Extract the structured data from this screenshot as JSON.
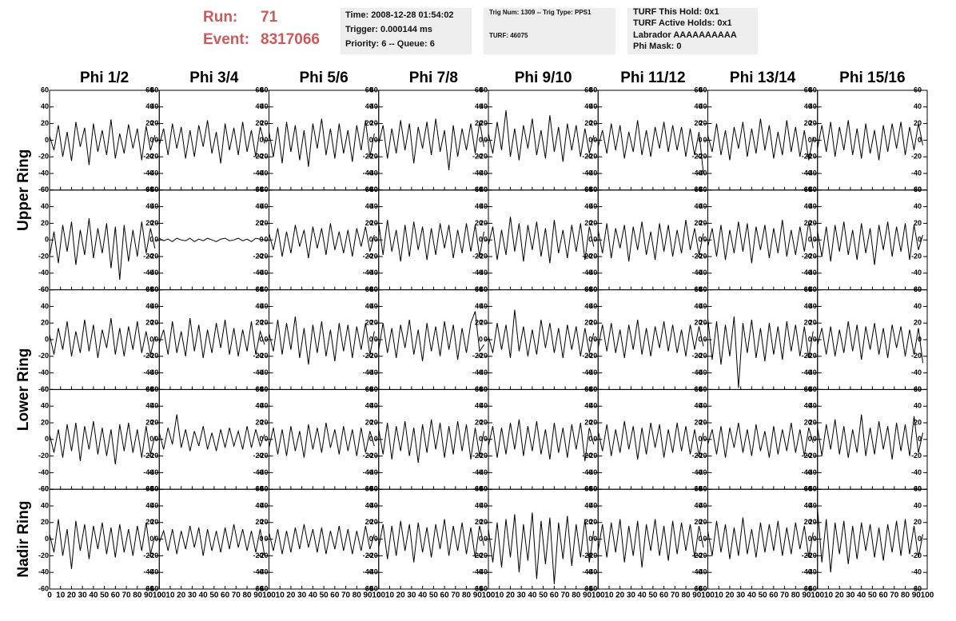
{
  "header": {
    "run_label": "Run:",
    "run": "71",
    "event_label": "Event:",
    "event": "8317066",
    "time_box": [
      "Time: 2008-12-28 01:54:02",
      "Trigger: 0.000144 ms",
      "Priority: 6 -- Queue: 6"
    ],
    "trig_box": [
      "Trig Num: 1309 -- Trig Type: PPS1",
      "TURF: 46075"
    ],
    "turf_box": [
      "TURF This Hold: 0x1",
      "TURF Active Holds: 0x1",
      "Labrador AAAAAAAAAA",
      "Phi Mask: 0"
    ]
  },
  "chart_data": {
    "type": "line",
    "column_titles": [
      "Phi 1/2",
      "Phi 3/4",
      "Phi 5/6",
      "Phi 7/8",
      "Phi 9/10",
      "Phi 11/12",
      "Phi 13/14",
      "Phi 15/16"
    ],
    "row_titles": [
      "Upper Ring",
      "Lower Ring",
      "Nadir Ring"
    ],
    "color": "#000000",
    "xlim": [
      0,
      100
    ],
    "xticks": [
      0,
      10,
      20,
      30,
      40,
      50,
      60,
      70,
      80,
      90,
      100
    ],
    "ylim": [
      -60,
      60
    ],
    "yticks": [
      -60,
      -40,
      -20,
      0,
      20,
      40,
      60
    ],
    "x": [
      0,
      4,
      8,
      12,
      16,
      20,
      24,
      28,
      32,
      36,
      40,
      44,
      48,
      52,
      56,
      60,
      64,
      68,
      72,
      76,
      80,
      84,
      88,
      92,
      96
    ],
    "series": [
      {
        "values": [
          5,
          -12,
          18,
          -20,
          10,
          -25,
          22,
          -8,
          15,
          -30,
          20,
          -14,
          12,
          -18,
          25,
          -22,
          8,
          -16,
          19,
          -10,
          14,
          -24,
          17,
          -12,
          6
        ]
      },
      {
        "values": [
          -6,
          14,
          -18,
          20,
          -10,
          16,
          -22,
          12,
          -20,
          18,
          -8,
          24,
          -16,
          10,
          -28,
          20,
          -12,
          15,
          -18,
          22,
          -14,
          12,
          -20,
          16,
          -4
        ]
      },
      {
        "values": [
          10,
          -20,
          16,
          -28,
          22,
          -14,
          18,
          -24,
          12,
          -32,
          20,
          -10,
          26,
          -18,
          14,
          -22,
          20,
          -16,
          12,
          -26,
          18,
          -12,
          24,
          -20,
          8
        ]
      },
      {
        "values": [
          -4,
          18,
          -22,
          14,
          -16,
          24,
          -12,
          20,
          -28,
          16,
          -10,
          22,
          -18,
          26,
          -14,
          12,
          -36,
          18,
          -20,
          14,
          -12,
          20,
          -16,
          22,
          -8
        ]
      },
      {
        "values": [
          8,
          -16,
          22,
          -12,
          36,
          -20,
          14,
          -24,
          18,
          -10,
          26,
          -18,
          12,
          -22,
          30,
          -14,
          16,
          -26,
          20,
          -12,
          18,
          -20,
          14,
          -16,
          6
        ]
      },
      {
        "values": [
          -8,
          12,
          -16,
          20,
          -12,
          18,
          -22,
          10,
          -14,
          24,
          -18,
          12,
          -20,
          16,
          -10,
          22,
          -14,
          18,
          -12,
          16,
          -20,
          14,
          -18,
          10,
          -40
        ]
      },
      {
        "values": [
          6,
          -14,
          20,
          -18,
          12,
          -24,
          16,
          -10,
          22,
          -20,
          14,
          -16,
          26,
          -12,
          18,
          -22,
          10,
          -18,
          24,
          -14,
          16,
          -20,
          12,
          -24,
          4
        ]
      },
      {
        "values": [
          -10,
          18,
          -14,
          22,
          -20,
          16,
          -12,
          24,
          -18,
          14,
          -22,
          20,
          -16,
          12,
          -24,
          18,
          -14,
          20,
          -10,
          22,
          -18,
          16,
          -12,
          20,
          -6
        ]
      },
      {
        "values": [
          -20,
          10,
          -28,
          18,
          -14,
          22,
          -30,
          12,
          -18,
          26,
          -22,
          14,
          -16,
          20,
          -34,
          16,
          -48,
          18,
          -26,
          12,
          -20,
          22,
          -16,
          14,
          -10
        ]
      },
      {
        "values": [
          2,
          -1,
          1,
          -2,
          2,
          0,
          -1,
          2,
          -2,
          1,
          -1,
          2,
          0,
          -2,
          1,
          2,
          -1,
          0,
          2,
          -1,
          1,
          -2,
          2,
          1,
          0
        ]
      },
      {
        "values": [
          8,
          -12,
          14,
          -20,
          10,
          -16,
          18,
          -8,
          12,
          -22,
          16,
          -10,
          14,
          -18,
          20,
          -12,
          10,
          -16,
          12,
          -20,
          14,
          -8,
          16,
          -14,
          6
        ]
      },
      {
        "values": [
          20,
          -18,
          24,
          -14,
          12,
          -26,
          18,
          -20,
          22,
          -12,
          16,
          -24,
          14,
          -18,
          20,
          -10,
          18,
          -22,
          12,
          -16,
          20,
          -14,
          18,
          -20,
          10
        ]
      },
      {
        "values": [
          -6,
          16,
          -24,
          12,
          -18,
          28,
          -14,
          20,
          -26,
          18,
          -12,
          22,
          -20,
          14,
          -28,
          24,
          -16,
          12,
          -22,
          18,
          -14,
          20,
          -24,
          16,
          -8
        ]
      },
      {
        "values": [
          12,
          -16,
          20,
          -22,
          14,
          -10,
          18,
          -26,
          16,
          -12,
          22,
          -18,
          10,
          -24,
          20,
          -14,
          18,
          -20,
          12,
          -16,
          24,
          -12,
          14,
          -18,
          8
        ]
      },
      {
        "values": [
          -8,
          14,
          -20,
          18,
          -24,
          12,
          -16,
          22,
          -14,
          20,
          -28,
          16,
          -12,
          18,
          -22,
          14,
          -16,
          24,
          -20,
          12,
          -18,
          16,
          -14,
          22,
          -10
        ]
      },
      {
        "values": [
          10,
          -20,
          16,
          -26,
          18,
          -14,
          22,
          -18,
          12,
          -24,
          20,
          -16,
          14,
          -30,
          18,
          -12,
          22,
          -20,
          16,
          -14,
          20,
          -24,
          18,
          -12,
          6
        ]
      },
      {
        "values": [
          6,
          -18,
          14,
          -12,
          22,
          -20,
          10,
          -16,
          24,
          -14,
          18,
          -22,
          12,
          -10,
          26,
          -18,
          14,
          -20,
          16,
          -12,
          22,
          -16,
          10,
          -18,
          4
        ]
      },
      {
        "values": [
          -4,
          12,
          -18,
          22,
          -16,
          10,
          -20,
          26,
          -14,
          18,
          -22,
          12,
          -16,
          20,
          -10,
          24,
          -18,
          14,
          -20,
          12,
          -14,
          22,
          -18,
          10,
          -6
        ]
      },
      {
        "values": [
          8,
          -14,
          24,
          -18,
          20,
          -12,
          28,
          -22,
          14,
          -30,
          18,
          -16,
          22,
          -20,
          12,
          -26,
          20,
          -14,
          18,
          -22,
          16,
          -12,
          20,
          -18,
          10
        ]
      },
      {
        "values": [
          -12,
          20,
          -16,
          14,
          -22,
          18,
          -10,
          24,
          -18,
          12,
          -26,
          20,
          -14,
          16,
          -20,
          22,
          -12,
          18,
          -24,
          14,
          -16,
          20,
          34,
          -14,
          -6
        ]
      },
      {
        "values": [
          4,
          -16,
          20,
          -12,
          18,
          -22,
          36,
          -14,
          16,
          -20,
          12,
          -18,
          24,
          -10,
          20,
          -16,
          14,
          -22,
          18,
          -12,
          16,
          -20,
          14,
          -16,
          8
        ]
      },
      {
        "values": [
          -10,
          18,
          -14,
          20,
          -16,
          12,
          -22,
          18,
          -12,
          24,
          -18,
          14,
          -20,
          16,
          -10,
          22,
          -14,
          18,
          -16,
          12,
          -20,
          18,
          -12,
          16,
          -8
        ]
      },
      {
        "values": [
          26,
          -24,
          22,
          -30,
          18,
          -20,
          28,
          -58,
          20,
          -16,
          24,
          -22,
          14,
          -26,
          20,
          -18,
          16,
          -24,
          22,
          -14,
          18,
          -20,
          16,
          -22,
          10
        ]
      },
      {
        "values": [
          -6,
          14,
          -18,
          16,
          -20,
          12,
          -16,
          22,
          -14,
          18,
          -24,
          16,
          -12,
          20,
          -18,
          14,
          -22,
          18,
          -10,
          16,
          -20,
          12,
          -18,
          14,
          -28
        ]
      },
      {
        "values": [
          6,
          -16,
          12,
          -22,
          18,
          -14,
          20,
          -26,
          16,
          -12,
          22,
          -18,
          14,
          -20,
          12,
          -30,
          18,
          -14,
          20,
          -16,
          12,
          -22,
          16,
          -18,
          4
        ]
      },
      {
        "values": [
          8,
          -12,
          14,
          -6,
          30,
          -10,
          12,
          -14,
          10,
          -8,
          16,
          -12,
          8,
          -14,
          12,
          -10,
          14,
          -8,
          10,
          -12,
          16,
          -10,
          12,
          -8,
          6
        ]
      },
      {
        "values": [
          -10,
          14,
          -18,
          12,
          -20,
          16,
          -14,
          10,
          -22,
          18,
          -12,
          14,
          -16,
          20,
          -10,
          12,
          -18,
          16,
          -14,
          12,
          -20,
          14,
          -16,
          10,
          -8
        ]
      },
      {
        "values": [
          12,
          -18,
          20,
          -24,
          16,
          -14,
          22,
          -20,
          14,
          -28,
          18,
          -16,
          24,
          -12,
          20,
          -22,
          16,
          -18,
          22,
          -14,
          18,
          -24,
          14,
          -20,
          10
        ]
      },
      {
        "values": [
          -8,
          16,
          -22,
          14,
          -18,
          20,
          -12,
          24,
          -20,
          16,
          -14,
          22,
          -18,
          12,
          -24,
          20,
          -16,
          14,
          -22,
          18,
          -12,
          20,
          -26,
          14,
          -6
        ]
      },
      {
        "values": [
          10,
          -14,
          18,
          -20,
          12,
          -16,
          22,
          -12,
          16,
          -24,
          14,
          -18,
          20,
          -10,
          18,
          -22,
          12,
          -16,
          20,
          -14,
          16,
          -18,
          12,
          -20,
          8
        ]
      },
      {
        "values": [
          -6,
          12,
          -18,
          16,
          -22,
          14,
          -10,
          20,
          -16,
          12,
          -20,
          18,
          -14,
          10,
          -22,
          16,
          -18,
          12,
          -14,
          20,
          -16,
          12,
          -20,
          14,
          -4
        ]
      },
      {
        "values": [
          14,
          -20,
          18,
          -12,
          24,
          -18,
          16,
          -22,
          12,
          -16,
          30,
          -20,
          14,
          -18,
          22,
          -12,
          16,
          -24,
          20,
          -14,
          18,
          -20,
          28,
          -16,
          8
        ]
      },
      {
        "values": [
          6,
          -16,
          24,
          -20,
          12,
          -36,
          22,
          -14,
          18,
          -24,
          16,
          -12,
          20,
          -18,
          14,
          -22,
          18,
          -16,
          12,
          -20,
          16,
          -14,
          20,
          -18,
          4
        ]
      },
      {
        "values": [
          -4,
          10,
          -14,
          12,
          -18,
          10,
          -12,
          16,
          -10,
          14,
          -20,
          12,
          -14,
          10,
          -16,
          14,
          -12,
          18,
          -10,
          12,
          -14,
          10,
          -16,
          12,
          -20
        ]
      },
      {
        "values": [
          8,
          -14,
          12,
          -18,
          10,
          -16,
          14,
          -12,
          18,
          -10,
          12,
          -16,
          14,
          -18,
          10,
          -12,
          16,
          -14,
          12,
          -18,
          10,
          -14,
          16,
          -12,
          6
        ]
      },
      {
        "values": [
          -10,
          18,
          -24,
          16,
          -20,
          22,
          -14,
          18,
          -28,
          20,
          -16,
          14,
          -22,
          18,
          -12,
          24,
          -20,
          16,
          -14,
          20,
          -18,
          14,
          -22,
          16,
          -8
        ]
      },
      {
        "values": [
          12,
          -28,
          20,
          -34,
          24,
          -22,
          30,
          -40,
          18,
          -26,
          32,
          -48,
          22,
          -30,
          26,
          -54,
          20,
          -24,
          28,
          -32,
          18,
          -22,
          24,
          -28,
          10
        ]
      },
      {
        "values": [
          -14,
          18,
          -22,
          20,
          -16,
          24,
          -28,
          16,
          -20,
          22,
          -34,
          18,
          -14,
          24,
          -20,
          16,
          -26,
          22,
          -18,
          20,
          -14,
          18,
          -22,
          16,
          -10
        ]
      },
      {
        "values": [
          10,
          -20,
          22,
          -16,
          18,
          -24,
          14,
          -20,
          26,
          -18,
          12,
          -22,
          20,
          -16,
          18,
          -14,
          22,
          -20,
          14,
          -18,
          20,
          -12,
          16,
          -22,
          8
        ]
      },
      {
        "values": [
          36,
          -28,
          24,
          -40,
          20,
          -18,
          22,
          -30,
          16,
          -24,
          20,
          -14,
          18,
          -22,
          14,
          -26,
          18,
          -16,
          22,
          -20,
          24,
          -18,
          16,
          -22,
          6
        ]
      }
    ]
  }
}
